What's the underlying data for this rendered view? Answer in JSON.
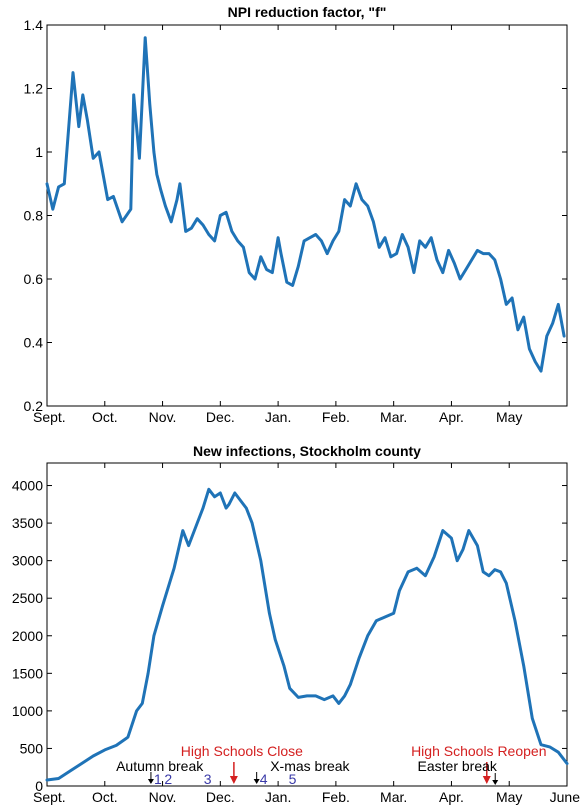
{
  "chart_data": [
    {
      "type": "line",
      "title": "NPI reduction factor, \"f\"",
      "xlabel": "",
      "ylabel": "",
      "ylim": [
        0.2,
        1.4
      ],
      "y_ticks": [
        "0.2",
        "0.4",
        "0.6",
        "0.8",
        "1",
        "1.2",
        "1.4"
      ],
      "x_ticks": [
        "Sept.",
        "Oct.",
        "Nov.",
        "Dec.",
        "Jan.",
        "Feb.",
        "Mar.",
        "Apr.",
        "May"
      ],
      "x_unit": "months since Sept. 1 (0 = Sept., 8 = May)",
      "x": [
        0,
        0.1,
        0.2,
        0.3,
        0.45,
        0.55,
        0.62,
        0.7,
        0.8,
        0.9,
        0.95,
        1.05,
        1.15,
        1.3,
        1.45,
        1.5,
        1.6,
        1.7,
        1.78,
        1.85,
        1.9,
        1.97,
        2.05,
        2.15,
        2.25,
        2.3,
        2.4,
        2.5,
        2.6,
        2.7,
        2.8,
        2.9,
        3.0,
        3.1,
        3.2,
        3.3,
        3.4,
        3.5,
        3.6,
        3.7,
        3.8,
        3.9,
        4.0,
        4.05,
        4.15,
        4.25,
        4.35,
        4.45,
        4.55,
        4.65,
        4.75,
        4.85,
        4.95,
        5.05,
        5.15,
        5.25,
        5.35,
        5.45,
        5.55,
        5.65,
        5.75,
        5.85,
        5.95,
        6.05,
        6.15,
        6.25,
        6.35,
        6.45,
        6.55,
        6.65,
        6.75,
        6.85,
        6.95,
        7.05,
        7.15,
        7.25,
        7.35,
        7.45,
        7.55,
        7.65,
        7.75,
        7.85,
        7.95,
        8.05,
        8.15,
        8.25,
        8.35,
        8.45,
        8.55,
        8.65,
        8.75,
        8.85,
        8.95
      ],
      "series": [
        {
          "name": "",
          "color": "#1f73b7",
          "values": [
            0.9,
            0.82,
            0.89,
            0.9,
            1.25,
            1.08,
            1.18,
            1.1,
            0.98,
            1.0,
            0.95,
            0.85,
            0.86,
            0.78,
            0.82,
            1.18,
            0.98,
            1.36,
            1.15,
            1.0,
            0.93,
            0.88,
            0.83,
            0.78,
            0.85,
            0.9,
            0.75,
            0.76,
            0.79,
            0.77,
            0.74,
            0.72,
            0.8,
            0.81,
            0.75,
            0.72,
            0.7,
            0.62,
            0.6,
            0.67,
            0.63,
            0.62,
            0.73,
            0.68,
            0.59,
            0.58,
            0.64,
            0.72,
            0.73,
            0.74,
            0.72,
            0.68,
            0.72,
            0.75,
            0.85,
            0.83,
            0.9,
            0.85,
            0.83,
            0.78,
            0.7,
            0.73,
            0.67,
            0.68,
            0.74,
            0.7,
            0.62,
            0.72,
            0.7,
            0.73,
            0.66,
            0.62,
            0.69,
            0.65,
            0.6,
            0.63,
            0.66,
            0.69,
            0.68,
            0.68,
            0.66,
            0.6,
            0.52,
            0.54,
            0.44,
            0.48,
            0.38,
            0.34,
            0.31,
            0.42,
            0.46,
            0.52,
            0.42
          ]
        }
      ]
    },
    {
      "type": "line",
      "title": "New infections, Stockholm county",
      "xlabel": "",
      "ylabel": "",
      "ylim": [
        0,
        4300
      ],
      "y_ticks": [
        "0",
        "500",
        "1000",
        "1500",
        "2000",
        "2500",
        "3000",
        "3500",
        "4000"
      ],
      "x_ticks": [
        "Sept.",
        "Oct.",
        "Nov.",
        "Dec.",
        "Jan.",
        "Feb.",
        "Mar.",
        "Apr.",
        "May",
        "June"
      ],
      "x_unit": "months since Sept. 1 (0 = Sept., 9 = June)",
      "x": [
        0,
        0.2,
        0.4,
        0.6,
        0.8,
        1.0,
        1.2,
        1.4,
        1.55,
        1.65,
        1.75,
        1.85,
        2.0,
        2.2,
        2.35,
        2.45,
        2.6,
        2.7,
        2.8,
        2.9,
        3.0,
        3.1,
        3.15,
        3.25,
        3.35,
        3.45,
        3.55,
        3.7,
        3.85,
        3.95,
        4.1,
        4.2,
        4.35,
        4.5,
        4.65,
        4.8,
        4.95,
        5.05,
        5.15,
        5.25,
        5.4,
        5.55,
        5.7,
        5.85,
        6.0,
        6.1,
        6.25,
        6.4,
        6.55,
        6.7,
        6.85,
        7.0,
        7.1,
        7.2,
        7.3,
        7.45,
        7.55,
        7.65,
        7.75,
        7.85,
        7.95,
        8.1,
        8.25,
        8.4,
        8.55,
        8.7,
        8.85,
        9.0
      ],
      "series": [
        {
          "name": "",
          "color": "#1f73b7",
          "values": [
            80,
            100,
            200,
            300,
            400,
            480,
            540,
            650,
            1000,
            1100,
            1500,
            2000,
            2400,
            2900,
            3400,
            3200,
            3500,
            3700,
            3950,
            3850,
            3900,
            3700,
            3750,
            3900,
            3800,
            3700,
            3500,
            3000,
            2300,
            1950,
            1600,
            1300,
            1180,
            1200,
            1200,
            1150,
            1200,
            1100,
            1200,
            1350,
            1700,
            2000,
            2200,
            2250,
            2300,
            2600,
            2850,
            2900,
            2800,
            3050,
            3400,
            3300,
            3000,
            3150,
            3400,
            3200,
            2850,
            2800,
            2880,
            2850,
            2700,
            2200,
            1600,
            900,
            550,
            520,
            450,
            300
          ]
        }
      ],
      "annotations": [
        {
          "text": "High Schools Close",
          "x": 3.2,
          "color": "#d42020",
          "arrow": true
        },
        {
          "text": "High Schools Reopen",
          "x": 7.3,
          "color": "#d42020",
          "arrow": true
        },
        {
          "text": "Autumn break",
          "x": 1.95,
          "color": "#000000",
          "arrow": false
        },
        {
          "text": "X-mas break",
          "x": 4.55,
          "color": "#000000",
          "arrow": false
        },
        {
          "text": "Easter break",
          "x": 7.1,
          "color": "#000000",
          "arrow": true
        },
        {
          "text": "1",
          "x": 1.92,
          "color": "#3a3aa8",
          "arrow": true
        },
        {
          "text": "2",
          "x": 2.1,
          "color": "#3a3aa8",
          "arrow": false
        },
        {
          "text": "3",
          "x": 2.78,
          "color": "#3a3aa8",
          "arrow": false
        },
        {
          "text": "4",
          "x": 3.75,
          "color": "#3a3aa8",
          "arrow": true
        },
        {
          "text": "5",
          "x": 4.25,
          "color": "#3a3aa8",
          "arrow": false
        }
      ]
    }
  ]
}
